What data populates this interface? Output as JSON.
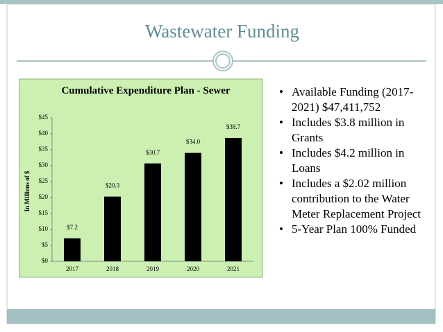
{
  "slide": {
    "title": "Wastewater Funding",
    "bullets": [
      "Available Funding (2017-2021) $47,411,752",
      "Includes $3.8 million in Grants",
      "Includes $4.2 million in Loans",
      "Includes a $2.02 million contribution to the Water Meter Replacement Project",
      "5-Year Plan 100% Funded"
    ]
  },
  "chart_data": {
    "type": "bar",
    "title": "Cumulative Expenditure Plan - Sewer",
    "y_label": "In Millions of $",
    "categories": [
      "2017",
      "2018",
      "2019",
      "2020",
      "2021"
    ],
    "values": [
      7.2,
      20.3,
      30.7,
      34.0,
      38.7
    ],
    "value_labels": [
      "$7.2",
      "$20.3",
      "$30.7",
      "$34.0",
      "$38.7"
    ],
    "color": "#000000",
    "ylim": [
      0,
      45
    ],
    "yticks": [
      {
        "value": 0,
        "label": "$0"
      },
      {
        "value": 5,
        "label": "$5"
      },
      {
        "value": 10,
        "label": "$10"
      },
      {
        "value": 15,
        "label": "$15"
      },
      {
        "value": 20,
        "label": "$20"
      },
      {
        "value": 25,
        "label": "$25"
      },
      {
        "value": 30,
        "label": "$30"
      },
      {
        "value": 35,
        "label": "$35"
      },
      {
        "value": 40,
        "label": "$40"
      },
      {
        "value": 45,
        "label": "$45"
      }
    ],
    "grid": false
  }
}
